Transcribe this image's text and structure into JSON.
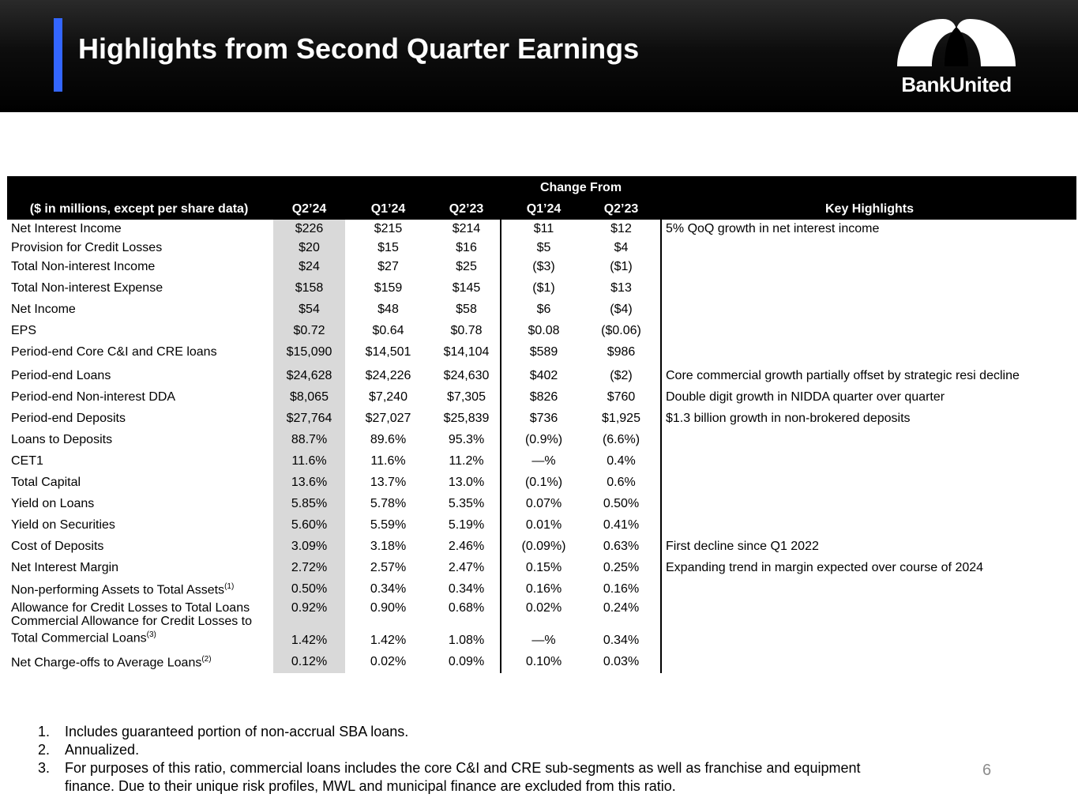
{
  "title": "Highlights from Second Quarter Earnings",
  "brand": {
    "name": "BankUnited",
    "accent_color": "#3366ff"
  },
  "table": {
    "change_from_label": "Change From",
    "headers": {
      "label": "($ in millions, except per share data)",
      "q2_24": "Q2’24",
      "q1_24": "Q1’24",
      "q2_23": "Q2’23",
      "chg_q1_24": "Q1’24",
      "chg_q2_23": "Q2’23",
      "highlights": "Key Highlights"
    },
    "rows": [
      {
        "label": "Net Interest Income",
        "q2_24": "$226",
        "q1_24": "$215",
        "q2_23": "$214",
        "chg_q1": "$11",
        "chg_q2": "$12",
        "highlight": "5% QoQ growth in net interest income"
      },
      {
        "label": "Provision for Credit Losses",
        "q2_24": "$20",
        "q1_24": "$15",
        "q2_23": "$16",
        "chg_q1": "$5",
        "chg_q2": "$4",
        "highlight": ""
      },
      {
        "label": "Total Non-interest Income",
        "q2_24": "$24",
        "q1_24": "$27",
        "q2_23": "$25",
        "chg_q1": "($3)",
        "chg_q2": "($1)",
        "highlight": ""
      },
      {
        "label": "Total Non-interest Expense",
        "q2_24": "$158",
        "q1_24": "$159",
        "q2_23": "$145",
        "chg_q1": "($1)",
        "chg_q2": "$13",
        "highlight": ""
      },
      {
        "label": "Net Income",
        "q2_24": "$54",
        "q1_24": "$48",
        "q2_23": "$58",
        "chg_q1": "$6",
        "chg_q2": "($4)",
        "highlight": ""
      },
      {
        "label": "EPS",
        "q2_24": "$0.72",
        "q1_24": "$0.64",
        "q2_23": "$0.78",
        "chg_q1": "$0.08",
        "chg_q2": "($0.06)",
        "highlight": ""
      },
      {
        "label": "Period-end Core C&I and CRE loans",
        "q2_24": "$15,090",
        "q1_24": "$14,501",
        "q2_23": "$14,104",
        "chg_q1": "$589",
        "chg_q2": "$986",
        "highlight": ""
      },
      {
        "label": "Period-end Loans",
        "q2_24": "$24,628",
        "q1_24": "$24,226",
        "q2_23": "$24,630",
        "chg_q1": "$402",
        "chg_q2": "($2)",
        "highlight": "Core commercial growth partially offset by strategic resi decline"
      },
      {
        "label": "Period-end Non-interest DDA",
        "q2_24": "$8,065",
        "q1_24": "$7,240",
        "q2_23": "$7,305",
        "chg_q1": "$826",
        "chg_q2": "$760",
        "highlight": "Double digit growth in NIDDA quarter over quarter"
      },
      {
        "label": "Period-end Deposits",
        "q2_24": "$27,764",
        "q1_24": "$27,027",
        "q2_23": "$25,839",
        "chg_q1": "$736",
        "chg_q2": "$1,925",
        "highlight": "$1.3 billion growth in non-brokered deposits"
      },
      {
        "label": "Loans to Deposits",
        "q2_24": "88.7%",
        "q1_24": "89.6%",
        "q2_23": "95.3%",
        "chg_q1": "(0.9%)",
        "chg_q2": "(6.6%)",
        "highlight": ""
      },
      {
        "label": "CET1",
        "q2_24": "11.6%",
        "q1_24": "11.6%",
        "q2_23": "11.2%",
        "chg_q1": "—%",
        "chg_q2": "0.4%",
        "highlight": ""
      },
      {
        "label": "Total Capital",
        "q2_24": "13.6%",
        "q1_24": "13.7%",
        "q2_23": "13.0%",
        "chg_q1": "(0.1%)",
        "chg_q2": "0.6%",
        "highlight": ""
      },
      {
        "label": "Yield on Loans",
        "q2_24": "5.85%",
        "q1_24": "5.78%",
        "q2_23": "5.35%",
        "chg_q1": "0.07%",
        "chg_q2": "0.50%",
        "highlight": ""
      },
      {
        "label": "Yield on Securities",
        "q2_24": "5.60%",
        "q1_24": "5.59%",
        "q2_23": "5.19%",
        "chg_q1": "0.01%",
        "chg_q2": "0.41%",
        "highlight": ""
      },
      {
        "label": "Cost of Deposits",
        "q2_24": "3.09%",
        "q1_24": "3.18%",
        "q2_23": "2.46%",
        "chg_q1": "(0.09%)",
        "chg_q2": "0.63%",
        "highlight": "First decline since Q1 2022"
      },
      {
        "label": "Net Interest Margin",
        "q2_24": "2.72%",
        "q1_24": "2.57%",
        "q2_23": "2.47%",
        "chg_q1": "0.15%",
        "chg_q2": "0.25%",
        "highlight": "Expanding trend in margin expected over course of 2024"
      },
      {
        "label": "Non-performing Assets to Total Assets",
        "sup": "(1)",
        "q2_24": "0.50%",
        "q1_24": "0.34%",
        "q2_23": "0.34%",
        "chg_q1": "0.16%",
        "chg_q2": "0.16%",
        "highlight": ""
      },
      {
        "label": "Allowance for Credit Losses to Total Loans",
        "q2_24": "0.92%",
        "q1_24": "0.90%",
        "q2_23": "0.68%",
        "chg_q1": "0.02%",
        "chg_q2": "0.24%",
        "highlight": ""
      },
      {
        "label": "Commercial Allowance for Credit Losses to",
        "label2": "Total Commercial Loans",
        "sup": "(3)",
        "q2_24": "1.42%",
        "q1_24": "1.42%",
        "q2_23": "1.08%",
        "chg_q1": "—%",
        "chg_q2": "0.34%",
        "highlight": ""
      },
      {
        "label": "Net Charge-offs to Average Loans",
        "sup": "(2)",
        "q2_24": "0.12%",
        "q1_24": "0.02%",
        "q2_23": "0.09%",
        "chg_q1": "0.10%",
        "chg_q2": "0.03%",
        "highlight": ""
      }
    ]
  },
  "footnotes": [
    {
      "num": "1.",
      "text": "Includes guaranteed portion of non-accrual SBA loans."
    },
    {
      "num": "2.",
      "text": "Annualized."
    },
    {
      "num": "3.",
      "text": "For purposes of this ratio, commercial loans includes the core C&I and CRE sub-segments as well as franchise and equipment finance. Due to their unique risk profiles, MWL and municipal finance are excluded from this ratio."
    }
  ],
  "page_number": "6"
}
